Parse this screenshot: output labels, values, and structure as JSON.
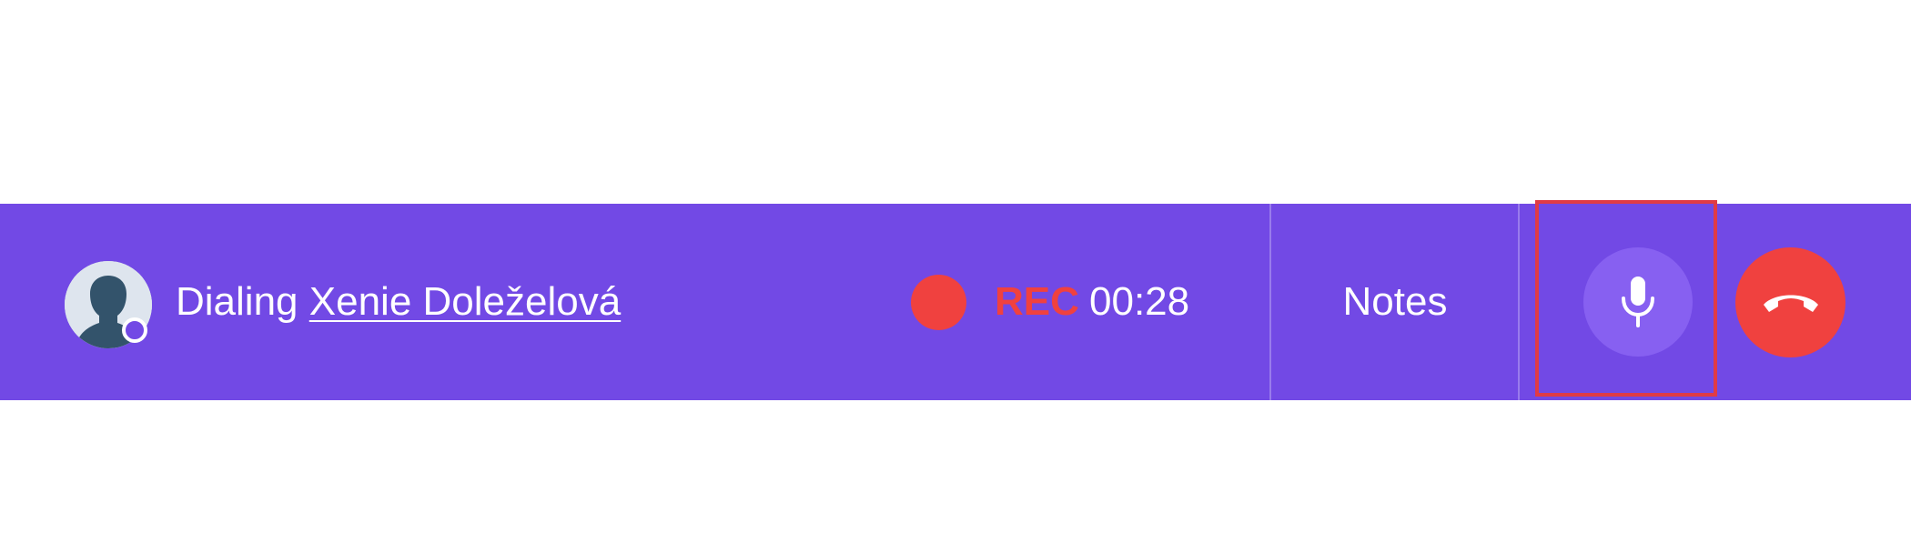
{
  "call": {
    "status_prefix": "Dialing",
    "contact_name": "Xenie Doleželová",
    "rec_label": "REC",
    "timer": "00:28"
  },
  "actions": {
    "notes_label": "Notes"
  },
  "colors": {
    "bar": "#7249E5",
    "rec": "#F0413F",
    "mute_bg": "#8760F1",
    "hangup_bg": "#F0413F",
    "highlight": "#E03B45"
  },
  "icons": {
    "avatar": "person-silhouette-icon",
    "presence": "presence-dot-icon",
    "record": "record-dot-icon",
    "mute": "microphone-icon",
    "hangup": "phone-hangup-icon"
  }
}
